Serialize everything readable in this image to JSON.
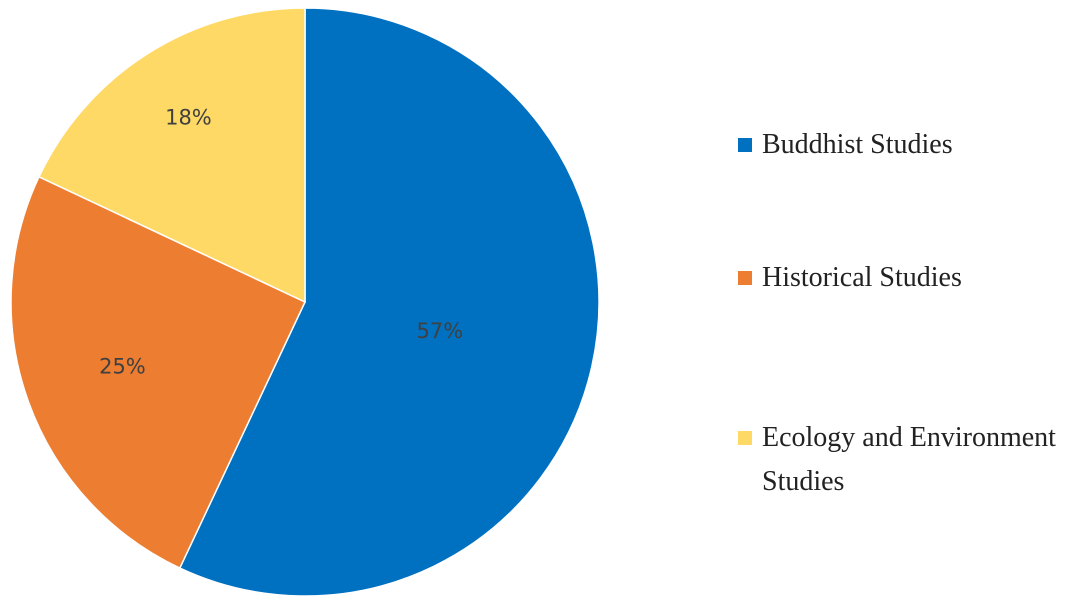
{
  "chart_data": {
    "type": "pie",
    "categories": [
      "Buddhist Studies",
      "Historical Studies",
      "Ecology and Environment Studies"
    ],
    "values": [
      57,
      25,
      18
    ],
    "value_labels": [
      "57%",
      "25%",
      "18%"
    ],
    "colors": [
      "#0070c0",
      "#ed7d31",
      "#ffd966"
    ],
    "legend": "right"
  }
}
